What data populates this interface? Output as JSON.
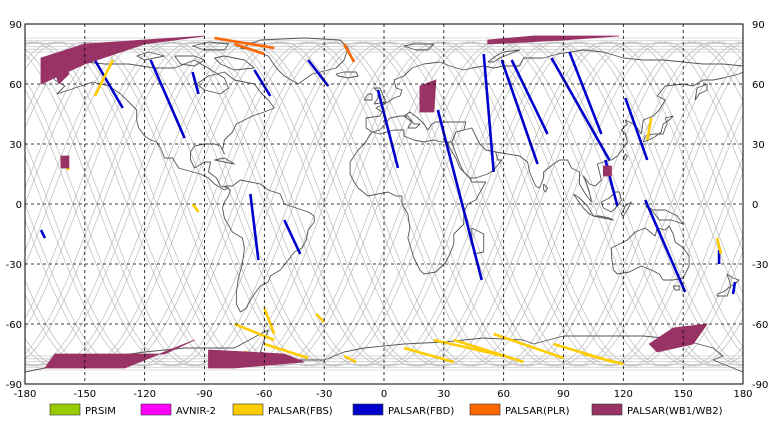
{
  "map": {
    "projection": "equirectangular",
    "lon_range": [
      -180,
      180
    ],
    "lat_range": [
      -90,
      90
    ],
    "grid_style": "dashed",
    "x_ticks": [
      "-180",
      "-150",
      "-120",
      "-90",
      "-60",
      "-30",
      "0",
      "30",
      "60",
      "90",
      "120",
      "150",
      "180"
    ],
    "y_ticks": [
      "90",
      "60",
      "30",
      "0",
      "-30",
      "-60",
      "-90"
    ]
  },
  "legend": [
    {
      "label": "PRSIM",
      "color": "#99cc00"
    },
    {
      "label": "AVNIR-2",
      "color": "#ff00ff"
    },
    {
      "label": "PALSAR(FBS)",
      "color": "#ffcc00"
    },
    {
      "label": "PALSAR(FBD)",
      "color": "#0000cc"
    },
    {
      "label": "PALSAR(PLR)",
      "color": "#ff6600"
    },
    {
      "label": "PALSAR(WB1/WB2)",
      "color": "#993366"
    }
  ],
  "colors": {
    "coast": "#555555",
    "orbit": "#bbbbbb",
    "grid": "#000000",
    "frame": "#000000"
  },
  "chart_data": {
    "type": "map",
    "xlim": [
      -180,
      180
    ],
    "ylim": [
      -90,
      90
    ],
    "series": [
      {
        "name": "PALSAR(FBD)",
        "color": "#0000cc",
        "segments": [
          [
            [
              -145,
              72
            ],
            [
              -131,
              48
            ]
          ],
          [
            [
              -117,
              72
            ],
            [
              -100,
              33
            ]
          ],
          [
            [
              -96,
              66
            ],
            [
              -93,
              55
            ]
          ],
          [
            [
              -65,
              67
            ],
            [
              -57,
              54
            ]
          ],
          [
            [
              -38,
              72
            ],
            [
              -28,
              59
            ]
          ],
          [
            [
              -50,
              -8
            ],
            [
              -42,
              -25
            ]
          ],
          [
            [
              -67,
              5
            ],
            [
              -63,
              -28
            ]
          ],
          [
            [
              -3,
              57
            ],
            [
              7,
              18
            ]
          ],
          [
            [
              27,
              47
            ],
            [
              49,
              -38
            ]
          ],
          [
            [
              50,
              75
            ],
            [
              55,
              16
            ]
          ],
          [
            [
              59,
              72
            ],
            [
              77,
              20
            ]
          ],
          [
            [
              64,
              72
            ],
            [
              82,
              35
            ]
          ],
          [
            [
              84,
              73
            ],
            [
              113,
              22
            ]
          ],
          [
            [
              93,
              76
            ],
            [
              109,
              35
            ]
          ],
          [
            [
              111,
              22
            ],
            [
              117,
              -1
            ]
          ],
          [
            [
              121,
              53
            ],
            [
              132,
              22
            ]
          ],
          [
            [
              131,
              2
            ],
            [
              151,
              -44
            ]
          ],
          [
            [
              -172,
              -13
            ],
            [
              -170,
              -17
            ]
          ],
          [
            [
              176,
              -39
            ],
            [
              175,
              -45
            ]
          ],
          [
            [
              168,
              -23
            ],
            [
              168,
              -30
            ]
          ]
        ]
      },
      {
        "name": "PALSAR(FBS)",
        "color": "#ffcc00",
        "segments": [
          [
            [
              -145,
              54
            ],
            [
              -136,
              72
            ]
          ],
          [
            [
              -162,
              23
            ],
            [
              -158,
              17
            ]
          ],
          [
            [
              -75,
              -60
            ],
            [
              -55,
              -68
            ]
          ],
          [
            [
              -60,
              -52
            ],
            [
              -55,
              -65
            ]
          ],
          [
            [
              -34,
              -55
            ],
            [
              -30,
              -59
            ]
          ],
          [
            [
              -70,
              -74
            ],
            [
              -45,
              -79
            ]
          ],
          [
            [
              -60,
              -70
            ],
            [
              -38,
              -77
            ]
          ],
          [
            [
              -20,
              -76
            ],
            [
              -14,
              -79
            ]
          ],
          [
            [
              10,
              -72
            ],
            [
              35,
              -79
            ]
          ],
          [
            [
              25,
              -68
            ],
            [
              60,
              -76
            ]
          ],
          [
            [
              35,
              -68
            ],
            [
              70,
              -79
            ]
          ],
          [
            [
              55,
              -65
            ],
            [
              90,
              -77
            ]
          ],
          [
            [
              85,
              -70
            ],
            [
              115,
              -79
            ]
          ],
          [
            [
              100,
              -75
            ],
            [
              120,
              -80
            ]
          ],
          [
            [
              134,
              43
            ],
            [
              132,
              32
            ]
          ],
          [
            [
              167,
              -17
            ],
            [
              169,
              -25
            ]
          ],
          [
            [
              -96,
              0
            ],
            [
              -93,
              -4
            ]
          ]
        ]
      },
      {
        "name": "PALSAR(PLR)",
        "color": "#ff6600",
        "segments": [
          [
            [
              -85,
              83
            ],
            [
              -55,
              78
            ]
          ],
          [
            [
              -20,
              80
            ],
            [
              -15,
              71
            ]
          ],
          [
            [
              -75,
              80
            ],
            [
              -60,
              75
            ]
          ]
        ]
      },
      {
        "name": "PALSAR(WB1/WB2)",
        "color": "#993366",
        "regions": [
          [
            [
              -172,
              73
            ],
            [
              -150,
              80
            ],
            [
              -90,
              84
            ],
            [
              -120,
              80
            ],
            [
              -150,
              70
            ],
            [
              -172,
              60
            ]
          ],
          [
            [
              -165,
              66
            ],
            [
              -160,
              70
            ],
            [
              -158,
              65
            ],
            [
              -163,
              60
            ]
          ],
          [
            [
              52,
              82
            ],
            [
              75,
              84
            ],
            [
              118,
              84
            ],
            [
              90,
              82
            ],
            [
              52,
              80
            ]
          ],
          [
            [
              18,
              59
            ],
            [
              26,
              62
            ],
            [
              25,
              46
            ],
            [
              18,
              46
            ]
          ],
          [
            [
              -165,
              -75
            ],
            [
              -110,
              -75
            ],
            [
              -95,
              -68
            ],
            [
              -130,
              -82
            ],
            [
              -170,
              -82
            ]
          ],
          [
            [
              -88,
              -73
            ],
            [
              -50,
              -75
            ],
            [
              -40,
              -79
            ],
            [
              -75,
              -82
            ],
            [
              -88,
              -82
            ]
          ],
          [
            [
              137,
              -74
            ],
            [
              155,
              -70
            ],
            [
              162,
              -60
            ],
            [
              145,
              -62
            ],
            [
              133,
              -70
            ]
          ],
          [
            [
              110,
              19
            ],
            [
              114,
              19
            ],
            [
              114,
              14
            ],
            [
              110,
              14
            ]
          ],
          [
            [
              -162,
              24
            ],
            [
              -158,
              24
            ],
            [
              -158,
              18
            ],
            [
              -162,
              18
            ]
          ]
        ]
      }
    ]
  }
}
